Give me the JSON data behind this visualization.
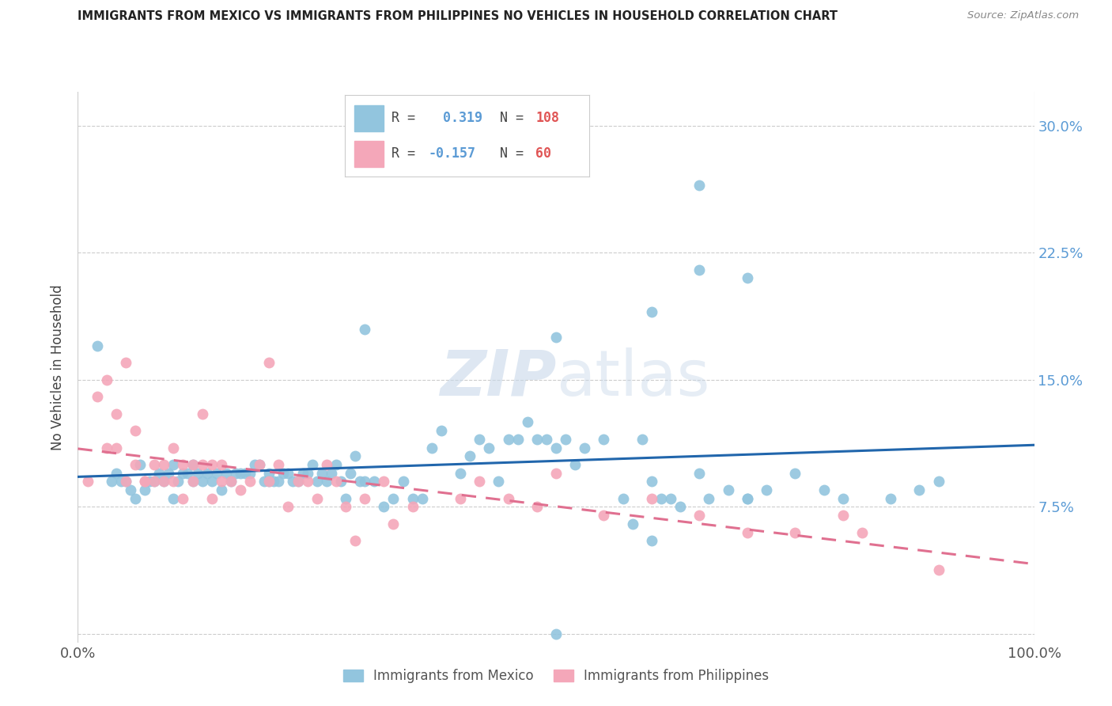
{
  "title": "IMMIGRANTS FROM MEXICO VS IMMIGRANTS FROM PHILIPPINES NO VEHICLES IN HOUSEHOLD CORRELATION CHART",
  "source": "Source: ZipAtlas.com",
  "ylabel": "No Vehicles in Household",
  "xlim": [
    0.0,
    1.0
  ],
  "ylim": [
    -0.005,
    0.32
  ],
  "mexico_color": "#92c5de",
  "philippines_color": "#f4a7b9",
  "mexico_R": 0.319,
  "mexico_N": 108,
  "philippines_R": -0.157,
  "philippines_N": 60,
  "mexico_trend_color": "#2166ac",
  "philippines_trend_color": "#e07090",
  "watermark_zip": "ZIP",
  "watermark_atlas": "atlas",
  "legend_label_mexico": "Immigrants from Mexico",
  "legend_label_philippines": "Immigrants from Philippines",
  "yticks": [
    0.0,
    0.075,
    0.15,
    0.225,
    0.3
  ],
  "ytick_labels": [
    "",
    "7.5%",
    "15.0%",
    "22.5%",
    "30.0%"
  ],
  "mexico_scatter_x": [
    0.02,
    0.035,
    0.04,
    0.045,
    0.05,
    0.055,
    0.06,
    0.065,
    0.07,
    0.075,
    0.08,
    0.085,
    0.09,
    0.095,
    0.1,
    0.1,
    0.105,
    0.11,
    0.115,
    0.12,
    0.12,
    0.125,
    0.13,
    0.135,
    0.14,
    0.145,
    0.15,
    0.155,
    0.16,
    0.165,
    0.17,
    0.175,
    0.18,
    0.185,
    0.19,
    0.195,
    0.2,
    0.2,
    0.205,
    0.21,
    0.215,
    0.22,
    0.225,
    0.23,
    0.235,
    0.24,
    0.245,
    0.25,
    0.255,
    0.26,
    0.265,
    0.27,
    0.275,
    0.28,
    0.285,
    0.29,
    0.295,
    0.3,
    0.31,
    0.32,
    0.33,
    0.34,
    0.35,
    0.36,
    0.37,
    0.38,
    0.4,
    0.41,
    0.42,
    0.43,
    0.44,
    0.45,
    0.46,
    0.47,
    0.48,
    0.49,
    0.5,
    0.51,
    0.52,
    0.53,
    0.55,
    0.57,
    0.58,
    0.59,
    0.6,
    0.61,
    0.62,
    0.63,
    0.65,
    0.66,
    0.68,
    0.7,
    0.72,
    0.75,
    0.78,
    0.8,
    0.85,
    0.88,
    0.9,
    0.5,
    0.6,
    0.65,
    0.7,
    0.5,
    0.6,
    0.65,
    0.7,
    0.3
  ],
  "mexico_scatter_y": [
    0.17,
    0.09,
    0.095,
    0.09,
    0.09,
    0.085,
    0.08,
    0.1,
    0.085,
    0.09,
    0.09,
    0.095,
    0.09,
    0.095,
    0.08,
    0.1,
    0.09,
    0.095,
    0.095,
    0.09,
    0.1,
    0.095,
    0.09,
    0.095,
    0.09,
    0.095,
    0.085,
    0.095,
    0.09,
    0.095,
    0.095,
    0.095,
    0.095,
    0.1,
    0.1,
    0.09,
    0.09,
    0.095,
    0.09,
    0.09,
    0.095,
    0.095,
    0.09,
    0.09,
    0.095,
    0.095,
    0.1,
    0.09,
    0.095,
    0.09,
    0.095,
    0.1,
    0.09,
    0.08,
    0.095,
    0.105,
    0.09,
    0.09,
    0.09,
    0.075,
    0.08,
    0.09,
    0.08,
    0.08,
    0.11,
    0.12,
    0.095,
    0.105,
    0.115,
    0.11,
    0.09,
    0.115,
    0.115,
    0.125,
    0.115,
    0.115,
    0.11,
    0.115,
    0.1,
    0.11,
    0.115,
    0.08,
    0.065,
    0.115,
    0.09,
    0.08,
    0.08,
    0.075,
    0.095,
    0.08,
    0.085,
    0.08,
    0.085,
    0.095,
    0.085,
    0.08,
    0.08,
    0.085,
    0.09,
    0.0,
    0.055,
    0.265,
    0.21,
    0.175,
    0.19,
    0.215,
    0.08,
    0.18
  ],
  "philippines_scatter_x": [
    0.01,
    0.02,
    0.03,
    0.03,
    0.04,
    0.04,
    0.05,
    0.05,
    0.06,
    0.06,
    0.07,
    0.07,
    0.08,
    0.08,
    0.09,
    0.09,
    0.1,
    0.1,
    0.11,
    0.11,
    0.12,
    0.12,
    0.13,
    0.13,
    0.14,
    0.14,
    0.15,
    0.15,
    0.16,
    0.17,
    0.18,
    0.19,
    0.2,
    0.2,
    0.21,
    0.22,
    0.23,
    0.24,
    0.25,
    0.26,
    0.27,
    0.28,
    0.29,
    0.3,
    0.32,
    0.33,
    0.35,
    0.4,
    0.42,
    0.45,
    0.48,
    0.5,
    0.55,
    0.6,
    0.65,
    0.7,
    0.75,
    0.8,
    0.82,
    0.9
  ],
  "philippines_scatter_y": [
    0.09,
    0.14,
    0.15,
    0.11,
    0.13,
    0.11,
    0.09,
    0.16,
    0.12,
    0.1,
    0.09,
    0.09,
    0.09,
    0.1,
    0.1,
    0.09,
    0.09,
    0.11,
    0.1,
    0.08,
    0.09,
    0.1,
    0.13,
    0.1,
    0.08,
    0.1,
    0.1,
    0.09,
    0.09,
    0.085,
    0.09,
    0.1,
    0.09,
    0.16,
    0.1,
    0.075,
    0.09,
    0.09,
    0.08,
    0.1,
    0.09,
    0.075,
    0.055,
    0.08,
    0.09,
    0.065,
    0.075,
    0.08,
    0.09,
    0.08,
    0.075,
    0.095,
    0.07,
    0.08,
    0.07,
    0.06,
    0.06,
    0.07,
    0.06,
    0.038
  ]
}
